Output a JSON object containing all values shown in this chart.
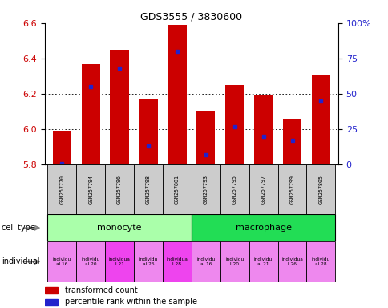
{
  "title": "GDS3555 / 3830600",
  "samples": [
    "GSM257770",
    "GSM257794",
    "GSM257796",
    "GSM257798",
    "GSM257801",
    "GSM257793",
    "GSM257795",
    "GSM257797",
    "GSM257799",
    "GSM257805"
  ],
  "transformed_count": [
    5.99,
    6.37,
    6.45,
    6.17,
    6.59,
    6.1,
    6.25,
    6.19,
    6.06,
    6.31
  ],
  "percentile_rank": [
    1,
    55,
    68,
    13,
    80,
    7,
    27,
    20,
    17,
    45
  ],
  "ymin": 5.8,
  "ymax": 6.6,
  "yticks": [
    5.8,
    6.0,
    6.2,
    6.4,
    6.6
  ],
  "right_yticks": [
    0,
    25,
    50,
    75,
    100
  ],
  "cell_type_groups": [
    {
      "label": "monocyte",
      "start": 0,
      "end": 5,
      "color": "#aaffaa"
    },
    {
      "label": "macrophage",
      "start": 5,
      "end": 10,
      "color": "#22dd55"
    }
  ],
  "indiv_labels": [
    "individu\nal 16",
    "individu\nal 20",
    "individua\nl 21",
    "individu\nal 26",
    "individua\nl 28",
    "individu\nal 16",
    "individu\nl 20",
    "individu\nal 21",
    "individua\nl 26",
    "individu\nal 28"
  ],
  "indiv_colors": [
    "#ee88ee",
    "#ee88ee",
    "#ee44ee",
    "#ee88ee",
    "#ee44ee",
    "#ee88ee",
    "#ee88ee",
    "#ee88ee",
    "#ee88ee",
    "#ee88ee"
  ],
  "bar_color": "#cc0000",
  "dot_color": "#2222cc",
  "sample_bg": "#cccccc",
  "bar_width": 0.65
}
